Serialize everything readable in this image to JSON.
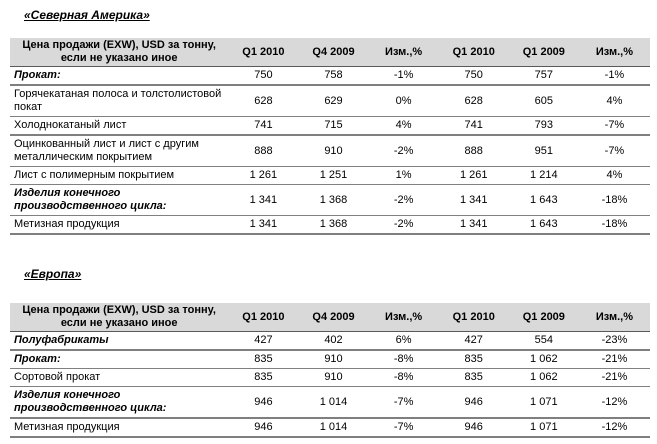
{
  "colors": {
    "header_background": "#d9d9d9",
    "row_border": "#808080",
    "header_border": "#595959",
    "text": "#000000"
  },
  "sections": [
    {
      "title": "«Северная Америка»",
      "header": {
        "label_lines": [
          "Цена продажи (EXW), USD за тонну,",
          "если не указано иное"
        ],
        "columns": [
          "Q1 2010",
          "Q4 2009",
          "Изм.,%",
          "Q1 2010",
          "Q1 2009",
          "Изм.,%"
        ]
      },
      "rows": [
        {
          "label": "Прокат:",
          "group": true,
          "thick": true,
          "values": [
            "750",
            "758",
            "-1%",
            "750",
            "757",
            "-1%"
          ]
        },
        {
          "label": "Горячекатаная полоса и толстолистовой покат",
          "group": false,
          "thick": false,
          "values": [
            "628",
            "629",
            "0%",
            "628",
            "605",
            "4%"
          ]
        },
        {
          "label": "Холоднокатаный лист",
          "group": false,
          "thick": true,
          "values": [
            "741",
            "715",
            "4%",
            "741",
            "793",
            "-7%"
          ]
        },
        {
          "label": "Оцинкованный лист и лист с другим металлическим покрытием",
          "group": false,
          "thick": false,
          "values": [
            "888",
            "910",
            "-2%",
            "888",
            "951",
            "-7%"
          ]
        },
        {
          "label": "Лист с полимерным покрытием",
          "group": false,
          "thick": false,
          "values": [
            "1 261",
            "1 251",
            "1%",
            "1 261",
            "1 214",
            "4%"
          ]
        },
        {
          "label": "Изделия конечного производственного цикла:",
          "group": true,
          "thick": false,
          "values": [
            "1 341",
            "1 368",
            "-2%",
            "1 341",
            "1 643",
            "-18%"
          ]
        },
        {
          "label": "Метизная продукция",
          "group": false,
          "thick": true,
          "values": [
            "1 341",
            "1 368",
            "-2%",
            "1 341",
            "1 643",
            "-18%"
          ]
        }
      ]
    },
    {
      "title": "«Европа»",
      "header": {
        "label_lines": [
          "Цена продажи (EXW), USD за тонну,",
          "если не указано иное"
        ],
        "columns": [
          "Q1 2010",
          "Q4 2009",
          "Изм.,%",
          "Q1 2010",
          "Q1 2009",
          "Изм.,%"
        ]
      },
      "rows": [
        {
          "label": "Полуфабрикаты",
          "group": true,
          "thick": true,
          "values": [
            "427",
            "402",
            "6%",
            "427",
            "554",
            "-23%"
          ]
        },
        {
          "label": "Прокат:",
          "group": true,
          "thick": false,
          "values": [
            "835",
            "910",
            "-8%",
            "835",
            "1 062",
            "-21%"
          ]
        },
        {
          "label": "Сортовой прокат",
          "group": false,
          "thick": false,
          "values": [
            "835",
            "910",
            "-8%",
            "835",
            "1 062",
            "-21%"
          ]
        },
        {
          "label": "Изделия конечного производственного цикла:",
          "group": true,
          "thick": true,
          "values": [
            "946",
            "1 014",
            "-7%",
            "946",
            "1 071",
            "-12%"
          ]
        },
        {
          "label": "Метизная продукция",
          "group": false,
          "thick": true,
          "values": [
            "946",
            "1 014",
            "-7%",
            "946",
            "1 071",
            "-12%"
          ]
        }
      ]
    }
  ]
}
